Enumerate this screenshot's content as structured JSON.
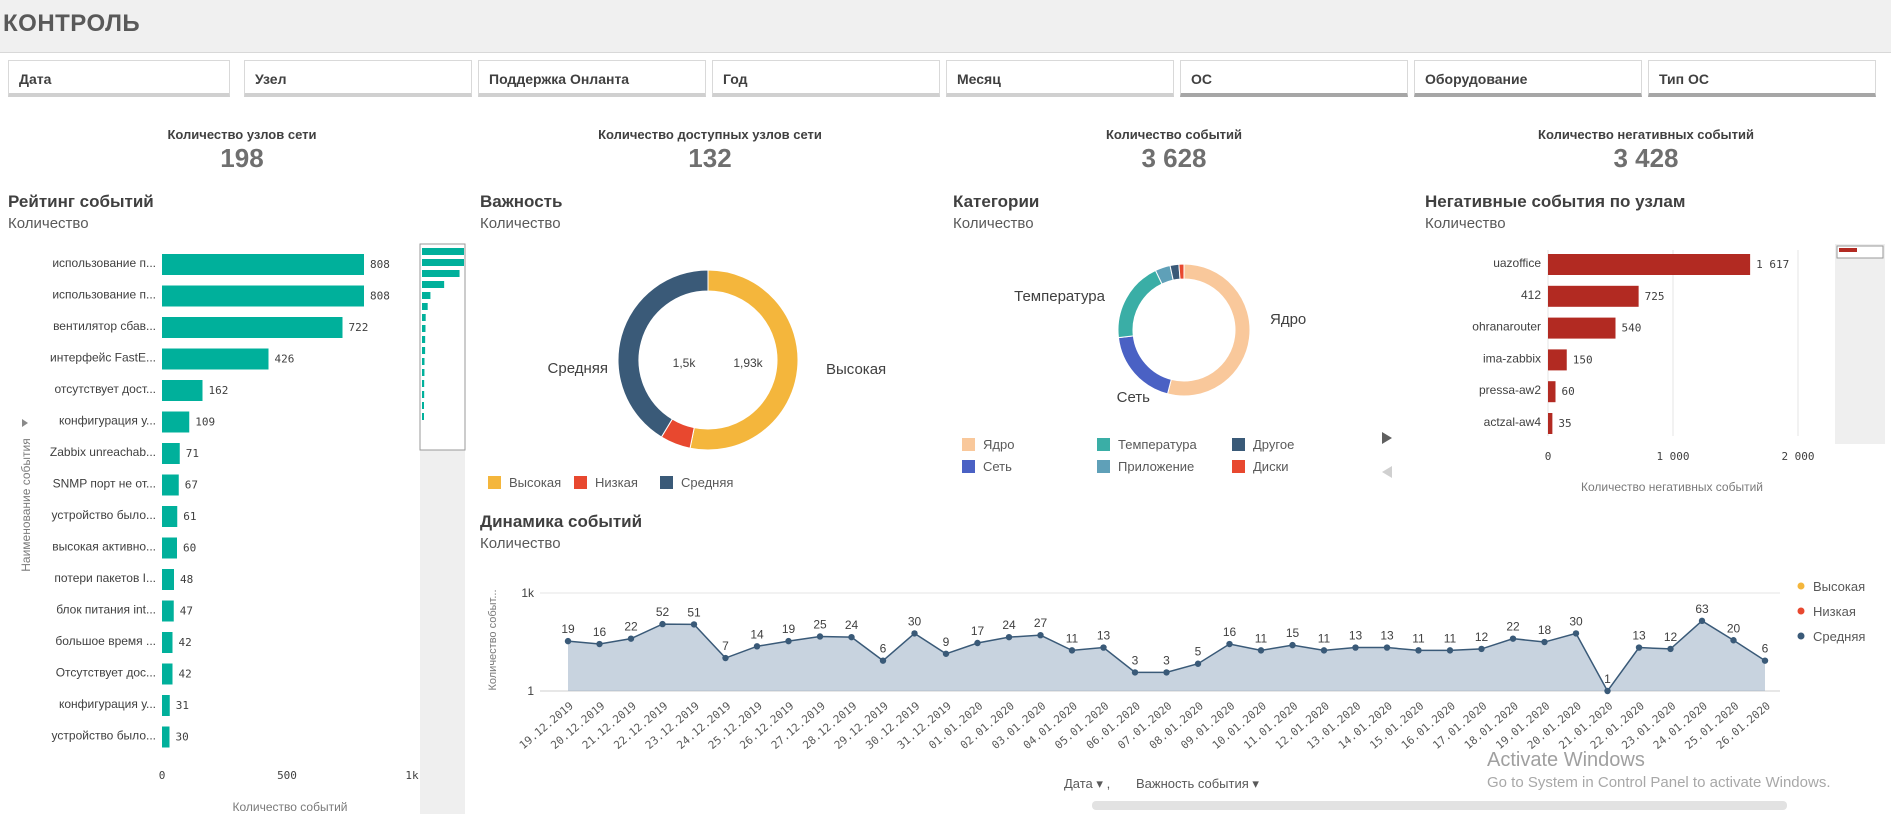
{
  "app": {
    "title": "КОНТРОЛЬ"
  },
  "filters": [
    "Дата",
    "Узел",
    "Поддержка Онланта",
    "Год",
    "Месяц",
    "ОС",
    "Оборудование",
    "Тип ОС"
  ],
  "kpis": [
    {
      "label": "Количество узлов сети",
      "value": "198"
    },
    {
      "label": "Количество доступных узлов сети",
      "value": "132"
    },
    {
      "label": "Количество событий",
      "value": "3 628"
    },
    {
      "label": "Количество негативных событий",
      "value": "3 428"
    }
  ],
  "colors": {
    "teal": "#00b09b",
    "orange": "#f4b63c",
    "red": "#e8482f",
    "navy": "#3a5a78",
    "darkred": "#b22a22",
    "peach": "#f9c89b",
    "blue": "#4a61c4",
    "cyan": "#3aaea6",
    "steel": "#5fa0b8",
    "grid": "#e6e6e6"
  },
  "rating": {
    "title": "Рейтинг событий",
    "subtitle": "Количество",
    "ylabel": "Наименование события",
    "xlabel": "Количество событий",
    "ticks": [
      "0",
      "500",
      "1k"
    ]
  },
  "importance": {
    "title": "Важность",
    "subtitle": "Количество",
    "label_left": "Средняя",
    "label_right": "Высокая",
    "inner_left": "1,5k",
    "inner_right": "1,93k",
    "legend": [
      "Высокая",
      "Низкая",
      "Средняя"
    ]
  },
  "categories": {
    "title": "Категории",
    "subtitle": "Количество",
    "labels": {
      "core": "Ядро",
      "temp": "Температура",
      "net": "Сеть"
    },
    "legend": [
      "Ядро",
      "Температура",
      "Другое",
      "Сеть",
      "Приложение",
      "Диски"
    ]
  },
  "negative": {
    "title": "Негативные события по узлам",
    "subtitle": "Количество",
    "xlabel": "Количество негативных событий",
    "ticks": [
      "0",
      "1 000",
      "2 000"
    ]
  },
  "dynamics": {
    "title": "Динамика событий",
    "subtitle": "Количество",
    "ylabel": "Количество событ...",
    "yticks": [
      "1k",
      "1"
    ],
    "legend": [
      "Высокая",
      "Низкая",
      "Средняя"
    ],
    "controls": {
      "date": "Дата",
      "importance": "Важность события"
    }
  },
  "watermark": {
    "line1": "Activate Windows",
    "line2": "Go to System in Control Panel to activate Windows."
  },
  "chart_data": [
    {
      "type": "bar",
      "title": "Рейтинг событий",
      "xlabel": "Количество событий",
      "ylabel": "Наименование события",
      "orientation": "horizontal",
      "xlim": [
        0,
        1000
      ],
      "categories": [
        "использование п...",
        "использование п...",
        "вентилятор сбав...",
        "интерфейс FastE...",
        "отсутствует дост...",
        "конфигурация у...",
        "Zabbix unreachab...",
        "SNMP порт не от...",
        "устройство было...",
        "высокая активно...",
        "потери пакетов I...",
        "блок питания int...",
        "большое время ...",
        "Отсутствует дос...",
        "конфигурация у...",
        "устройство было..."
      ],
      "values": [
        808,
        808,
        722,
        426,
        162,
        109,
        71,
        67,
        61,
        60,
        48,
        47,
        42,
        42,
        31,
        30
      ]
    },
    {
      "type": "pie",
      "title": "Важность",
      "categories": [
        "Высокая",
        "Низкая",
        "Средняя"
      ],
      "values": [
        1930,
        198,
        1500
      ]
    },
    {
      "type": "pie",
      "title": "Категории",
      "categories": [
        "Ядро",
        "Сеть",
        "Температура",
        "Приложение",
        "Другое",
        "Диски"
      ],
      "values": [
        1750,
        620,
        640,
        120,
        70,
        40
      ]
    },
    {
      "type": "bar",
      "title": "Негативные события по узлам",
      "xlabel": "Количество негативных событий",
      "orientation": "horizontal",
      "xlim": [
        0,
        2000
      ],
      "categories": [
        "uazoffice",
        "412",
        "ohranarouter",
        "ima-zabbix",
        "pressa-aw2",
        "actzal-aw4"
      ],
      "values": [
        1617,
        725,
        540,
        150,
        60,
        35
      ]
    },
    {
      "type": "line",
      "title": "Динамика событий",
      "ylabel": "Количество событ...",
      "yscale": "log",
      "x": [
        "19.12.2019",
        "20.12.2019",
        "21.12.2019",
        "22.12.2019",
        "23.12.2019",
        "24.12.2019",
        "25.12.2019",
        "26.12.2019",
        "27.12.2019",
        "28.12.2019",
        "29.12.2019",
        "30.12.2019",
        "31.12.2019",
        "01.01.2020",
        "02.01.2020",
        "03.01.2020",
        "04.01.2020",
        "05.01.2020",
        "06.01.2020",
        "07.01.2020",
        "08.01.2020",
        "09.01.2020",
        "10.01.2020",
        "11.01.2020",
        "12.01.2020",
        "13.01.2020",
        "14.01.2020",
        "15.01.2020",
        "16.01.2020",
        "17.01.2020",
        "18.01.2020",
        "19.01.2020",
        "20.01.2020",
        "21.01.2020",
        "22.01.2020",
        "23.01.2020",
        "24.01.2020",
        "25.01.2020",
        "26.01.2020"
      ],
      "series": [
        {
          "name": "Средняя",
          "values": [
            19,
            16,
            22,
            52,
            51,
            7,
            14,
            19,
            25,
            24,
            6,
            30,
            9,
            17,
            24,
            27,
            11,
            13,
            3,
            3,
            5,
            16,
            11,
            15,
            11,
            13,
            13,
            11,
            11,
            12,
            22,
            18,
            30,
            1,
            13,
            12,
            63,
            20,
            6
          ]
        }
      ]
    }
  ]
}
